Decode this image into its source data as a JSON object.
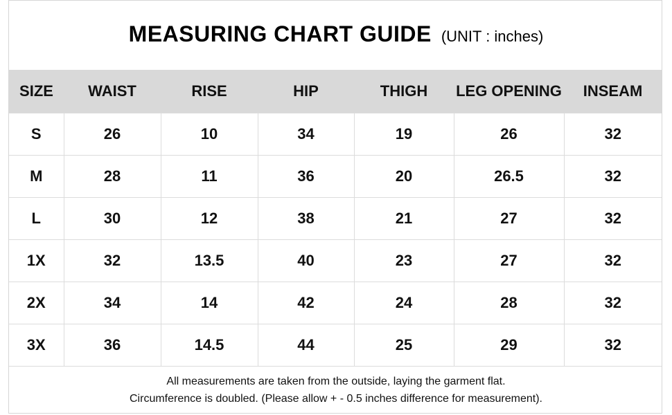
{
  "title": "MEASURING CHART GUIDE",
  "unit_label": "(UNIT : inches)",
  "table": {
    "headers": [
      "SIZE",
      "WAIST",
      "RISE",
      "HIP",
      "THIGH",
      "LEG OPENING",
      "INSEAM"
    ],
    "rows": [
      [
        "S",
        "26",
        "10",
        "34",
        "19",
        "26",
        "32"
      ],
      [
        "M",
        "28",
        "11",
        "36",
        "20",
        "26.5",
        "32"
      ],
      [
        "L",
        "30",
        "12",
        "38",
        "21",
        "27",
        "32"
      ],
      [
        "1X",
        "32",
        "13.5",
        "40",
        "23",
        "27",
        "32"
      ],
      [
        "2X",
        "34",
        "14",
        "42",
        "24",
        "28",
        "32"
      ],
      [
        "3X",
        "36",
        "14.5",
        "44",
        "25",
        "29",
        "32"
      ]
    ]
  },
  "notes": [
    "All measurements are taken from the outside, laying the garment flat.",
    "Circumference is doubled. (Please allow + - 0.5 inches difference for measurement)."
  ]
}
